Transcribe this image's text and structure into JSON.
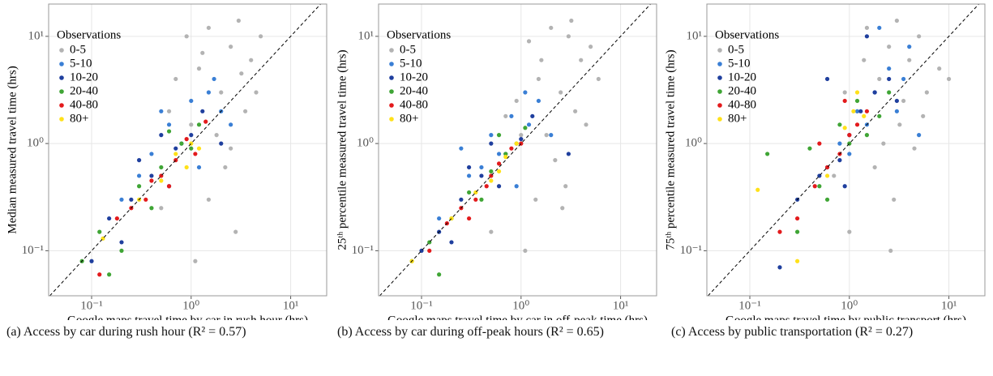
{
  "chart_data": [
    {
      "type": "scatter",
      "caption": "(a) Access by car during rush hour (R² = 0.57)",
      "xlabel": "Google maps travel time by car in rush hour (hrs)",
      "ylabel": "Median measured travel time (hrs)",
      "legend_title": "Observations",
      "legend": "top-left",
      "log_x": true,
      "log_y": true,
      "grid": true,
      "diagonal": true,
      "xlim": [
        0.037,
        23
      ],
      "ylim": [
        0.038,
        20
      ],
      "xticks": [
        {
          "value": 0.1,
          "label": "10⁻¹"
        },
        {
          "value": 1,
          "label": "10⁰"
        },
        {
          "value": 10,
          "label": "10¹"
        }
      ],
      "yticks": [
        {
          "value": 0.1,
          "label": "10⁻¹"
        },
        {
          "value": 1,
          "label": "10⁰"
        },
        {
          "value": 10,
          "label": "10¹"
        }
      ],
      "series": [
        {
          "name": "0-5",
          "color": "#b3b3b3",
          "x": [
            0.9,
            1.5,
            2.5,
            3,
            4,
            1.2,
            2,
            5,
            0.7,
            3.5,
            1.8,
            2.2,
            1.5,
            2.8,
            1.1,
            0.5,
            4.5,
            0.6,
            1,
            2.5,
            3.2,
            1.3
          ],
          "values": [
            10,
            12,
            8,
            14,
            6,
            5,
            3,
            10,
            4,
            2,
            1.2,
            0.6,
            0.3,
            0.15,
            0.08,
            0.25,
            3,
            2,
            1.5,
            0.9,
            4.5,
            7
          ]
        },
        {
          "name": "5-10",
          "color": "#3a7fd5",
          "x": [
            0.3,
            0.6,
            1,
            1.5,
            0.8,
            2,
            0.4,
            1.2,
            0.5,
            2.5,
            0.2,
            1.7
          ],
          "values": [
            0.5,
            1.5,
            2.5,
            3,
            1,
            2,
            0.8,
            0.6,
            2,
            1.5,
            0.3,
            4
          ]
        },
        {
          "name": "10-20",
          "color": "#1f3f9e",
          "x": [
            0.1,
            0.15,
            0.25,
            0.4,
            0.7,
            1,
            0.3,
            0.6,
            1.3,
            0.2,
            2,
            0.5
          ],
          "values": [
            0.08,
            0.2,
            0.3,
            0.5,
            0.9,
            1.2,
            0.7,
            0.4,
            2,
            0.12,
            1,
            1.2
          ]
        },
        {
          "name": "20-40",
          "color": "#3fa535",
          "x": [
            0.08,
            0.12,
            0.2,
            0.3,
            0.5,
            0.8,
            1,
            1.2,
            0.4,
            0.15,
            0.6
          ],
          "values": [
            0.08,
            0.15,
            0.1,
            0.4,
            0.6,
            1,
            0.9,
            1.5,
            0.25,
            0.06,
            1.3
          ]
        },
        {
          "name": "40-80",
          "color": "#e31a1c",
          "x": [
            0.12,
            0.18,
            0.25,
            0.35,
            0.5,
            0.7,
            0.9,
            1.1,
            1.4,
            0.4,
            0.6
          ],
          "values": [
            0.06,
            0.2,
            0.25,
            0.3,
            0.5,
            0.7,
            1.1,
            0.8,
            1.6,
            0.45,
            0.4
          ]
        },
        {
          "name": "80+",
          "color": "#ffe119",
          "x": [
            0.13,
            0.3,
            0.5,
            0.7,
            1,
            1.2,
            0.9
          ],
          "values": [
            0.13,
            0.3,
            0.45,
            0.8,
            1,
            0.9,
            0.6
          ]
        }
      ]
    },
    {
      "type": "scatter",
      "caption": "(b) Access by car during off-peak hours (R² = 0.65)",
      "xlabel": "Google maps travel time by car in off-peak time (hrs)",
      "ylabel": "25ᵗʰ percentile measured travel time (hrs)",
      "legend_title": "Observations",
      "legend": "top-left",
      "log_x": true,
      "log_y": true,
      "grid": true,
      "diagonal": true,
      "xlim": [
        0.037,
        23
      ],
      "ylim": [
        0.038,
        20
      ],
      "xticks": [
        {
          "value": 0.1,
          "label": "10⁻¹"
        },
        {
          "value": 1,
          "label": "10⁰"
        },
        {
          "value": 10,
          "label": "10¹"
        }
      ],
      "yticks": [
        {
          "value": 0.1,
          "label": "10⁻¹"
        },
        {
          "value": 1,
          "label": "10⁰"
        },
        {
          "value": 10,
          "label": "10¹"
        }
      ],
      "series": [
        {
          "name": "0-5",
          "color": "#b3b3b3",
          "x": [
            1.2,
            2,
            3,
            4,
            1.5,
            2.5,
            5,
            0.9,
            3.5,
            1.8,
            2.2,
            1.4,
            2.8,
            1.1,
            0.5,
            4.5,
            0.7,
            1,
            3.2,
            6,
            2.6,
            1.6
          ],
          "values": [
            9,
            12,
            10,
            6,
            4,
            3,
            8,
            2.5,
            2,
            1.2,
            0.7,
            0.3,
            0.4,
            0.1,
            0.15,
            1.5,
            1.8,
            1.2,
            14,
            4,
            0.25,
            6
          ]
        },
        {
          "name": "5-10",
          "color": "#3a7fd5",
          "x": [
            0.3,
            0.5,
            0.8,
            1.2,
            0.6,
            1.5,
            0.4,
            0.9,
            0.25,
            2,
            0.15,
            1.1
          ],
          "values": [
            0.5,
            1.2,
            1.8,
            1.5,
            0.8,
            2.5,
            0.6,
            0.4,
            0.9,
            1.2,
            0.2,
            3
          ]
        },
        {
          "name": "10-20",
          "color": "#1f3f9e",
          "x": [
            0.1,
            0.15,
            0.25,
            0.4,
            0.7,
            1,
            0.3,
            0.6,
            1.3,
            0.2,
            3,
            0.5
          ],
          "values": [
            0.1,
            0.15,
            0.3,
            0.5,
            0.8,
            1.1,
            0.6,
            0.4,
            1.8,
            0.12,
            0.8,
            1
          ]
        },
        {
          "name": "20-40",
          "color": "#3fa535",
          "x": [
            0.08,
            0.12,
            0.2,
            0.3,
            0.5,
            0.7,
            0.9,
            1.1,
            0.4,
            0.15,
            0.6
          ],
          "values": [
            0.08,
            0.12,
            0.2,
            0.35,
            0.55,
            0.8,
            1,
            1.4,
            0.3,
            0.06,
            1.2
          ]
        },
        {
          "name": "40-80",
          "color": "#e31a1c",
          "x": [
            0.12,
            0.18,
            0.25,
            0.35,
            0.5,
            0.6,
            0.8,
            1,
            0.45,
            0.3
          ],
          "values": [
            0.1,
            0.18,
            0.25,
            0.3,
            0.5,
            0.65,
            0.9,
            1,
            0.4,
            0.2
          ]
        },
        {
          "name": "80+",
          "color": "#ffe119",
          "x": [
            0.08,
            0.2,
            0.35,
            0.5,
            0.7,
            0.9,
            0.6
          ],
          "values": [
            0.08,
            0.2,
            0.35,
            0.45,
            0.75,
            1,
            0.55
          ]
        }
      ]
    },
    {
      "type": "scatter",
      "caption": "(c) Access by public transportation (R² = 0.27)",
      "xlabel": "Google maps travel time by public transport (hrs)",
      "ylabel": "75ᵗʰ percentile measured travel time (hrs)",
      "legend_title": "Observations",
      "legend": "top-left",
      "log_x": true,
      "log_y": true,
      "grid": true,
      "diagonal": true,
      "xlim": [
        0.037,
        23
      ],
      "ylim": [
        0.038,
        20
      ],
      "xticks": [
        {
          "value": 0.1,
          "label": "10⁻¹"
        },
        {
          "value": 1,
          "label": "10⁰"
        },
        {
          "value": 10,
          "label": "10¹"
        }
      ],
      "yticks": [
        {
          "value": 0.1,
          "label": "10⁻¹"
        },
        {
          "value": 1,
          "label": "10⁰"
        },
        {
          "value": 10,
          "label": "10¹"
        }
      ],
      "series": [
        {
          "name": "0-5",
          "color": "#b3b3b3",
          "x": [
            1.5,
            2.5,
            3,
            4,
            5,
            2,
            6,
            1.2,
            3.5,
            8,
            2.2,
            1.8,
            2.8,
            4.5,
            1,
            0.7,
            3.2,
            10,
            2.6,
            1.4,
            5.5,
            0.9
          ],
          "values": [
            12,
            8,
            14,
            6,
            10,
            4,
            3,
            2,
            2.5,
            5,
            1,
            0.6,
            0.3,
            0.9,
            0.15,
            0.5,
            1.5,
            4,
            0.1,
            6,
            1.8,
            3
          ]
        },
        {
          "name": "5-10",
          "color": "#3a7fd5",
          "x": [
            0.8,
            1.2,
            1.8,
            2.5,
            3,
            4,
            1,
            1.5,
            2,
            0.6,
            3.5,
            5
          ],
          "values": [
            1,
            2,
            3,
            5,
            2,
            8,
            0.8,
            1.5,
            12,
            0.6,
            4,
            1.2
          ]
        },
        {
          "name": "10-20",
          "color": "#1f3f9e",
          "x": [
            0.2,
            0.3,
            0.5,
            0.8,
            1,
            1.3,
            1.8,
            2.5,
            0.6,
            3,
            1.5,
            0.9
          ],
          "values": [
            0.07,
            0.3,
            0.5,
            0.7,
            1.2,
            2,
            3,
            4,
            4,
            2.5,
            10,
            0.4
          ]
        },
        {
          "name": "20-40",
          "color": "#3fa535",
          "x": [
            0.15,
            0.3,
            0.5,
            0.8,
            1,
            1.2,
            1.5,
            2,
            0.6,
            0.4,
            2.5
          ],
          "values": [
            0.8,
            0.15,
            0.4,
            1.5,
            1,
            2.5,
            1.2,
            1.8,
            0.3,
            0.9,
            3
          ]
        },
        {
          "name": "40-80",
          "color": "#e31a1c",
          "x": [
            0.2,
            0.3,
            0.45,
            0.6,
            0.8,
            1,
            1.2,
            1.5,
            0.5,
            0.9
          ],
          "values": [
            0.15,
            0.2,
            0.4,
            0.6,
            0.8,
            1.2,
            1.5,
            2,
            1,
            2.5
          ]
        },
        {
          "name": "80+",
          "color": "#ffe119",
          "x": [
            0.12,
            0.3,
            0.6,
            0.9,
            1.1,
            1.4,
            1.2
          ],
          "values": [
            0.37,
            0.08,
            0.5,
            1.4,
            2,
            1.8,
            3
          ]
        }
      ]
    }
  ]
}
